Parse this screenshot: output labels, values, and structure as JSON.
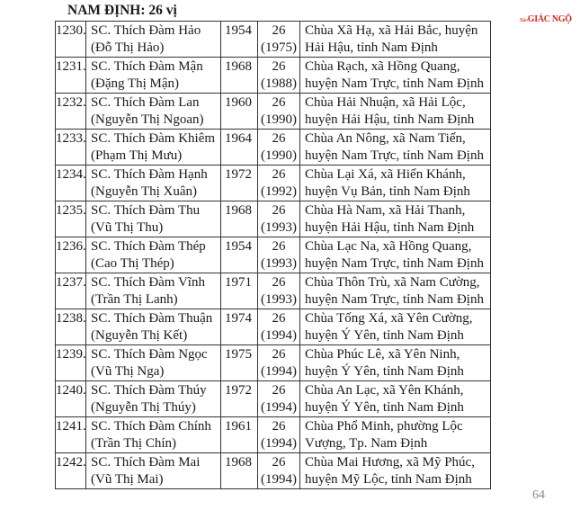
{
  "heading": "NAM ĐỊNH: 26 vị",
  "logo": {
    "small": "Báo",
    "main": "GIÁC NGỘ",
    "color": "#d4261c"
  },
  "page_number": "64",
  "rows": [
    {
      "no": "1230.",
      "name": "SC. Thích Đàm Hảo",
      "lay_name": "(Đỗ Thị Hảo)",
      "birth": "1954",
      "order": "26",
      "order_year": "(1975)",
      "address": "Chùa Xã Hạ, xã Hải Bắc, huyện Hải Hậu, tỉnh Nam Định"
    },
    {
      "no": "1231.",
      "name": "SC. Thích Đàm Mận",
      "lay_name": "(Đặng Thị Mận)",
      "birth": "1968",
      "order": "26",
      "order_year": "(1988)",
      "address": "Chùa Rạch, xã Hồng Quang, huyện Nam Trực, tỉnh Nam Định"
    },
    {
      "no": "1232.",
      "name": "SC. Thích Đàm Lan",
      "lay_name": "(Nguyễn Thị Ngoan)",
      "birth": "1960",
      "order": "26",
      "order_year": "(1990)",
      "address": "Chùa Hải Nhuận, xã Hải Lộc, huyện Hải Hậu, tỉnh Nam Định"
    },
    {
      "no": "1233.",
      "name": "SC. Thích Đàm Khiêm",
      "lay_name": "(Phạm Thị Mưu)",
      "birth": "1964",
      "order": "26",
      "order_year": "(1990)",
      "address": "Chùa An Nông, xã Nam Tiến, huyện Nam Trực, tỉnh Nam Định"
    },
    {
      "no": "1234.",
      "name": "SC. Thích Đàm Hạnh",
      "lay_name": "(Nguyễn Thị Xuân)",
      "birth": "1972",
      "order": "26",
      "order_year": "(1992)",
      "address": "Chùa Lại Xá, xã Hiển Khánh, huyện Vụ Bản, tỉnh Nam Định"
    },
    {
      "no": "1235.",
      "name": "SC. Thích Đàm Thu",
      "lay_name": "(Vũ Thị Thu)",
      "birth": "1968",
      "order": "26",
      "order_year": "(1993)",
      "address": "Chùa Hà Nam, xã Hải Thanh, huyện Hải Hậu, tỉnh Nam Định"
    },
    {
      "no": "1236.",
      "name": "SC. Thích Đàm Thép",
      "lay_name": "(Cao Thị Thép)",
      "birth": "1954",
      "order": "26",
      "order_year": "(1993)",
      "address": "Chùa Lạc Na, xã Hồng Quang, huyện Nam Trực, tỉnh Nam Định"
    },
    {
      "no": "1237.",
      "name": "SC. Thích Đàm Vĩnh",
      "lay_name": "(Trần Thị Lanh)",
      "birth": "1971",
      "order": "26",
      "order_year": "(1993)",
      "address": "Chùa Thôn Trù, xã Nam Cường, huyện Nam Trực, tỉnh Nam Định"
    },
    {
      "no": "1238.",
      "name": "SC. Thích Đàm Thuận",
      "lay_name": "(Nguyễn Thị Kết)",
      "birth": "1974",
      "order": "26",
      "order_year": "(1994)",
      "address": "Chùa Tống Xá, xã Yên Cường, huyện Ý Yên, tỉnh Nam Định"
    },
    {
      "no": "1239.",
      "name": "SC. Thích Đàm Ngọc",
      "lay_name": "(Vũ Thị Nga)",
      "birth": "1975",
      "order": "26",
      "order_year": "(1994)",
      "address": "Chùa Phúc Lê, xã Yên Ninh, huyện Ý Yên, tỉnh Nam Định"
    },
    {
      "no": "1240.",
      "name": "SC. Thích Đàm Thúy",
      "lay_name": "(Nguyễn Thị Thúy)",
      "birth": "1972",
      "order": "26",
      "order_year": "(1994)",
      "address": "Chùa An Lạc, xã Yên Khánh, huyện Ý Yên, tỉnh Nam Định"
    },
    {
      "no": "1241.",
      "name": "SC. Thích Đàm Chính",
      "lay_name": "(Trần Thị Chín)",
      "birth": "1961",
      "order": "26",
      "order_year": "(1994)",
      "address": "Chùa Phổ Minh, phường Lộc Vượng, Tp. Nam Định"
    },
    {
      "no": "1242.",
      "name": "SC. Thích Đàm Mai",
      "lay_name": "(Vũ Thị Mai)",
      "birth": "1968",
      "order": "26",
      "order_year": "(1994)",
      "address": "Chùa Mai Hương, xã Mỹ Phúc, huyện Mỹ Lộc, tỉnh Nam Định"
    }
  ]
}
